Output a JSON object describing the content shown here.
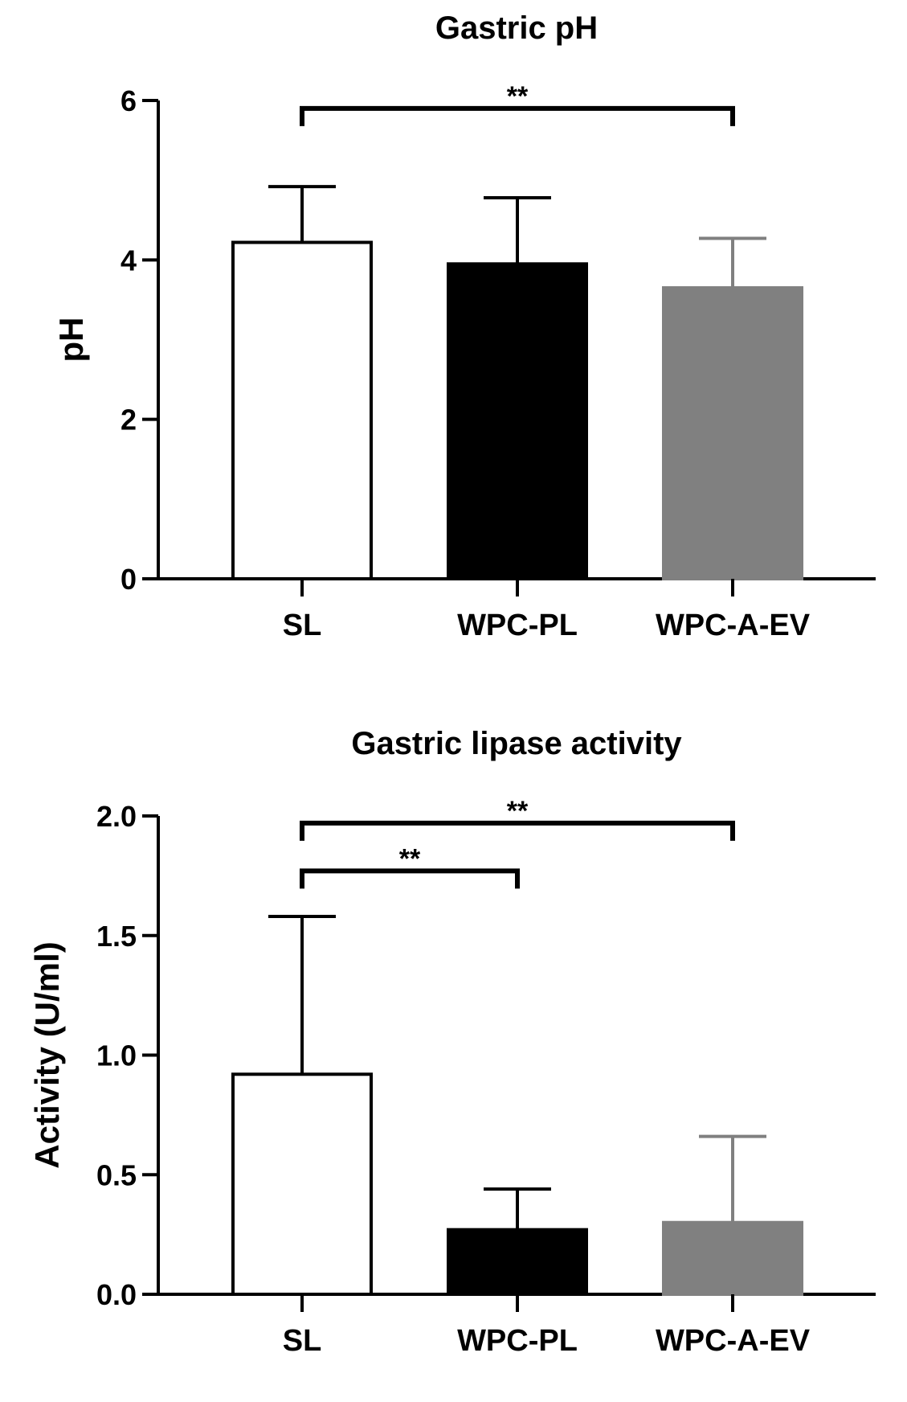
{
  "chart_data": [
    {
      "type": "bar",
      "title": "Gastric pH",
      "xlabel": "",
      "ylabel": "pH",
      "categories": [
        "SL",
        "WPC-PL",
        "WPC-A-EV"
      ],
      "values": [
        4.22,
        3.95,
        3.65
      ],
      "errors": [
        0.7,
        0.83,
        0.62
      ],
      "bar_colors": [
        "#ffffff",
        "#000000",
        "#808080"
      ],
      "error_colors": [
        "#000000",
        "#000000",
        "#808080"
      ],
      "ylim": [
        0,
        6
      ],
      "yticks": [
        "0",
        "2",
        "4",
        "6"
      ],
      "grid": false,
      "significance": [
        {
          "from": 0,
          "to": 2,
          "label": "**",
          "y": 5.9
        }
      ]
    },
    {
      "type": "bar",
      "title": "Gastric lipase activity",
      "xlabel": "",
      "ylabel": "Activity (U/ml)",
      "categories": [
        "SL",
        "WPC-PL",
        "WPC-A-EV"
      ],
      "values": [
        0.92,
        0.27,
        0.3
      ],
      "errors": [
        0.66,
        0.17,
        0.36
      ],
      "bar_colors": [
        "#ffffff",
        "#000000",
        "#808080"
      ],
      "error_colors": [
        "#000000",
        "#000000",
        "#808080"
      ],
      "ylim": [
        0,
        2
      ],
      "yticks": [
        "0.0",
        "0.5",
        "1.0",
        "1.5",
        "2.0"
      ],
      "grid": false,
      "significance": [
        {
          "from": 0,
          "to": 2,
          "label": "**",
          "y": 1.97
        },
        {
          "from": 0,
          "to": 1,
          "label": "**",
          "y": 1.77
        }
      ]
    }
  ]
}
